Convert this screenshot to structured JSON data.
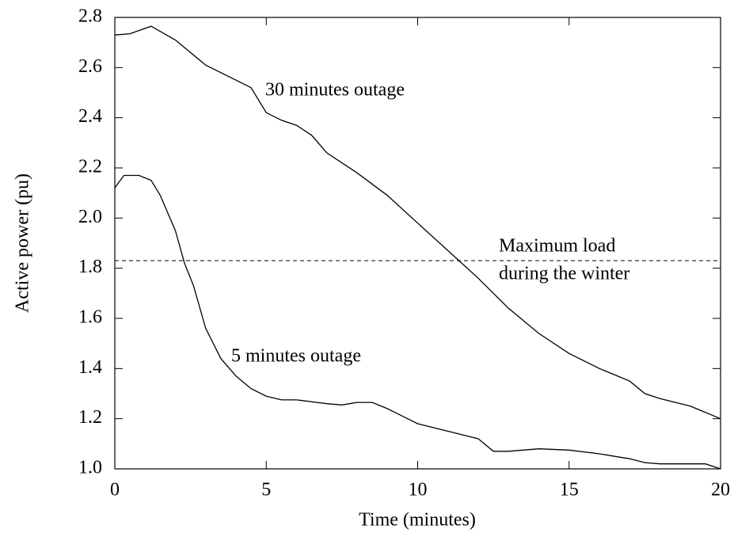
{
  "chart_data": {
    "type": "line",
    "xlabel": "Time (minutes)",
    "ylabel": "Active power (pu)",
    "xlim": [
      0,
      20
    ],
    "xticks": [
      0,
      5,
      10,
      15,
      20
    ],
    "ylim": [
      1.0,
      2.8
    ],
    "yticks": [
      {
        "value": 1.0,
        "label": "1.0"
      },
      1.2,
      1.4,
      1.6,
      1.8,
      {
        "value": 2.0,
        "label": "2.0"
      },
      2.2,
      2.4,
      2.6,
      2.8
    ],
    "grid": false,
    "hline": {
      "value": 1.83,
      "style": "dashed",
      "label": [
        "Maximum load",
        "during the winter"
      ]
    },
    "series": [
      {
        "name": "30 minutes outage",
        "color": "#000000",
        "x": [
          0,
          0.5,
          1.2,
          2,
          3,
          4,
          4.5,
          5,
          5.5,
          6,
          6.5,
          7,
          8,
          9,
          10,
          11,
          12,
          13,
          14,
          15,
          16,
          17,
          17.5,
          18,
          19,
          20
        ],
        "values": [
          2.73,
          2.735,
          2.765,
          2.71,
          2.61,
          2.55,
          2.52,
          2.42,
          2.39,
          2.37,
          2.33,
          2.26,
          2.18,
          2.09,
          1.98,
          1.87,
          1.76,
          1.64,
          1.54,
          1.46,
          1.4,
          1.35,
          1.3,
          1.28,
          1.25,
          1.2
        ]
      },
      {
        "name": "5 minutes outage",
        "color": "#000000",
        "x": [
          0,
          0.3,
          0.8,
          1.2,
          1.5,
          2,
          2.3,
          2.6,
          3,
          3.5,
          4,
          4.5,
          5,
          5.5,
          6,
          7,
          7.5,
          8,
          8.5,
          9,
          10,
          11,
          12,
          12.5,
          13,
          14,
          15,
          16,
          17,
          17.5,
          18,
          19,
          19.5,
          20
        ],
        "values": [
          2.12,
          2.17,
          2.17,
          2.15,
          2.09,
          1.95,
          1.82,
          1.73,
          1.56,
          1.44,
          1.37,
          1.32,
          1.29,
          1.275,
          1.275,
          1.26,
          1.255,
          1.265,
          1.265,
          1.24,
          1.18,
          1.15,
          1.12,
          1.07,
          1.07,
          1.08,
          1.075,
          1.06,
          1.04,
          1.025,
          1.02,
          1.02,
          1.02,
          1.0
        ]
      }
    ]
  }
}
